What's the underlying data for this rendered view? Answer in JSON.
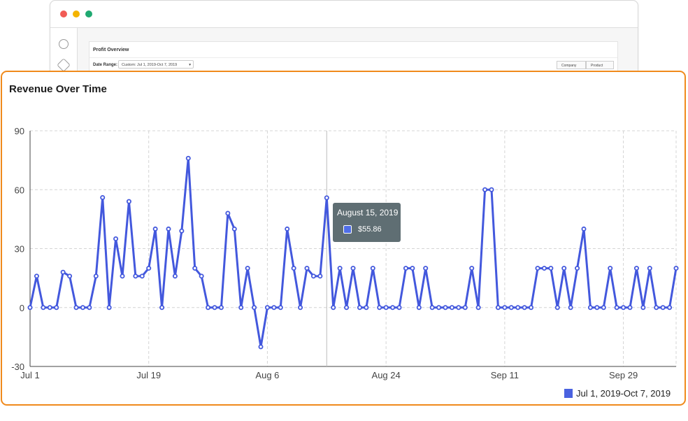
{
  "background_app": {
    "panel_title": "Profit Overview",
    "date_range_label": "Date Range:",
    "date_range_value": "Custom: Jul 1, 2019-Oct 7, 2019",
    "caret": "▾",
    "segment_company": "Company",
    "segment_product": "Product",
    "sidebar_icons": [
      "search-icon",
      "tag-icon"
    ]
  },
  "card": {
    "title": "Revenue Over Time"
  },
  "tooltip": {
    "date": "August 15, 2019",
    "value": "$55.86"
  },
  "legend": {
    "label": "Jul 1, 2019-Oct 7, 2019"
  },
  "colors": {
    "series": "#4358dd",
    "accent_border": "#f08a1c",
    "tooltip_bg": "#5f6e73"
  },
  "chart_data": {
    "type": "line",
    "title": "Revenue Over Time",
    "xlabel": "",
    "ylabel": "",
    "ylim": [
      -30,
      90
    ],
    "y_ticks": [
      -30,
      0,
      30,
      60,
      90
    ],
    "x_start_date": "2019-07-01",
    "x_ticks": [
      {
        "label": "Jul 1",
        "day": 0
      },
      {
        "label": "Jul 19",
        "day": 18
      },
      {
        "label": "Aug 6",
        "day": 36
      },
      {
        "label": "Aug 24",
        "day": 54
      },
      {
        "label": "Sep 11",
        "day": 72
      },
      {
        "label": "Sep 29",
        "day": 90
      }
    ],
    "grid": true,
    "legend_position": "bottom-right",
    "highlight_index": 45,
    "series": [
      {
        "name": "Jul 1, 2019-Oct 7, 2019",
        "values": [
          0,
          16,
          0,
          0,
          0,
          18,
          16,
          0,
          0,
          0,
          16,
          56,
          0,
          35,
          16,
          54,
          16,
          16,
          20,
          40,
          0,
          40,
          16,
          39,
          76,
          20,
          16,
          0,
          0,
          0,
          48,
          40,
          0,
          20,
          0,
          -20,
          0,
          0,
          0,
          40,
          20,
          0,
          20,
          16,
          16,
          55.86,
          0,
          20,
          0,
          20,
          0,
          0,
          20,
          0,
          0,
          0,
          0,
          20,
          20,
          0,
          20,
          0,
          0,
          0,
          0,
          0,
          0,
          20,
          0,
          60,
          60,
          0,
          0,
          0,
          0,
          0,
          0,
          20,
          20,
          20,
          0,
          20,
          0,
          20,
          40,
          0,
          0,
          0,
          20,
          0,
          0,
          0,
          20,
          0,
          20,
          0,
          0,
          0,
          20
        ]
      }
    ]
  }
}
